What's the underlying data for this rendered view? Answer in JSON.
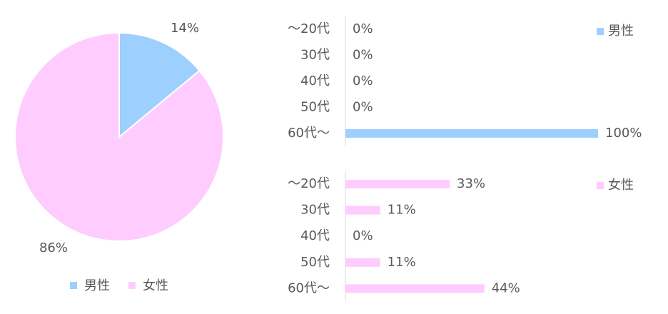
{
  "chart_data": [
    {
      "type": "pie",
      "categories": [
        "男性",
        "女性"
      ],
      "values": [
        14,
        86
      ],
      "value_labels": [
        "14%",
        "86%"
      ],
      "colors": [
        "#9dcfff",
        "#ffccff"
      ],
      "legend": "bottom"
    },
    {
      "type": "hbar",
      "categories": [
        "～20代",
        "30代",
        "40代",
        "50代",
        "60代～"
      ],
      "xlim": [
        0,
        100
      ],
      "legend": "right",
      "series": [
        {
          "name": "男性",
          "color": "#9dcfff",
          "values": [
            0,
            0,
            0,
            0,
            100
          ],
          "value_labels": [
            "0%",
            "0%",
            "0%",
            "0%",
            "100%"
          ]
        }
      ]
    },
    {
      "type": "hbar",
      "categories": [
        "～20代",
        "30代",
        "40代",
        "50代",
        "60代～"
      ],
      "xlim": [
        0,
        80
      ],
      "legend": "right",
      "series": [
        {
          "name": "女性",
          "color": "#ffccff",
          "values": [
            33,
            11,
            0,
            11,
            44
          ],
          "value_labels": [
            "33%",
            "11%",
            "0%",
            "11%",
            "44%"
          ]
        }
      ]
    }
  ]
}
